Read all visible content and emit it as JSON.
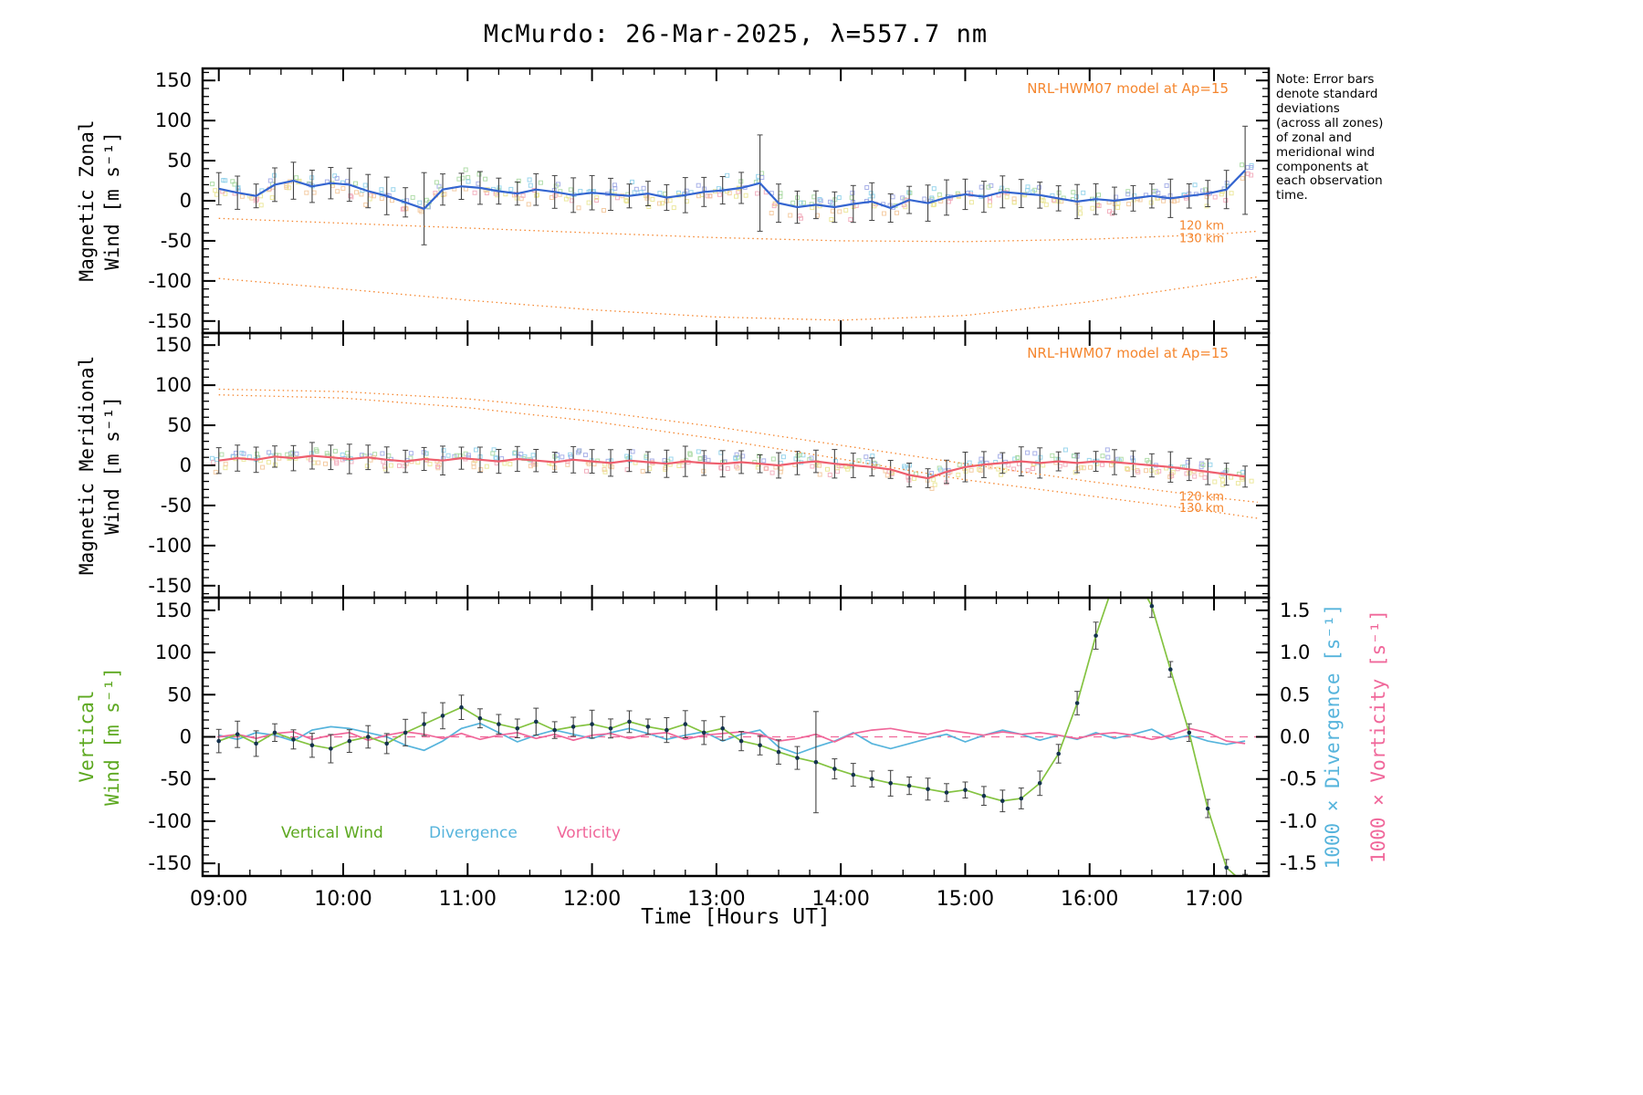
{
  "title": "McMurdo: 26-Mar-2025, λ=557.7 nm",
  "note": "Note: Error bars\ndenote standard\ndeviations\n(across all zones)\nof zonal and\nmeridional wind\ncomponents at\neach observation\ntime.",
  "colors": {
    "zonal_mean": "#3465d0",
    "meridional_mean": "#ee5f6e",
    "vertical_wind": "#84c341",
    "vertical_dots": "#14324e",
    "divergence": "#56b4dc",
    "vorticity": "#f0679a",
    "model": "#f5862e",
    "error_bar": "#444444"
  },
  "axes": {
    "xlabel": "Time [Hours UT]",
    "xlim": [
      8.87,
      17.44
    ],
    "xtick_vals": [
      9,
      10,
      11,
      12,
      13,
      14,
      15,
      16,
      17
    ],
    "xtick_labels": [
      "09:00",
      "10:00",
      "11:00",
      "12:00",
      "13:00",
      "14:00",
      "15:00",
      "16:00",
      "17:00"
    ],
    "ytick_vals": [
      150,
      100,
      50,
      0,
      -50,
      -100,
      -150
    ],
    "ytick_labels": [
      "150",
      "100",
      "50",
      "0",
      "-50",
      "-100",
      "-150"
    ],
    "x_hours": [
      9.0,
      9.15,
      9.3,
      9.45,
      9.6,
      9.75,
      9.9,
      10.05,
      10.2,
      10.35,
      10.5,
      10.65,
      10.8,
      10.95,
      11.1,
      11.25,
      11.4,
      11.55,
      11.7,
      11.85,
      12.0,
      12.15,
      12.3,
      12.45,
      12.6,
      12.75,
      12.9,
      13.05,
      13.2,
      13.35,
      13.5,
      13.65,
      13.8,
      13.95,
      14.1,
      14.25,
      14.4,
      14.55,
      14.7,
      14.85,
      15.0,
      15.15,
      15.3,
      15.45,
      15.6,
      15.75,
      15.9,
      16.05,
      16.2,
      16.35,
      16.5,
      16.65,
      16.8,
      16.95,
      17.1,
      17.25
    ]
  },
  "chart_data": [
    {
      "type": "line",
      "ylabel1": "Magnetic Zonal",
      "ylabel2": "Wind [m s⁻¹]",
      "ylim": [
        -150,
        150
      ],
      "ylim_draw": [
        -165,
        165
      ],
      "model_note": "NRL-HWM07 model at Ap=15",
      "series": [
        {
          "name": "zonal-mean-wind",
          "type": "mean",
          "color": "#3465d0",
          "width": 2.2,
          "err_base": 14,
          "err_jitter": 10,
          "err_override": {
            "11": 45,
            "29": 60,
            "55": 55
          },
          "scatter": {
            "n": 7,
            "spread": 14,
            "dx": 0.06,
            "colors_above": [
              "#9fa9e6",
              "#8fd0ea",
              "#a9d9a1"
            ],
            "colors_below": [
              "#f2a9b9",
              "#eae594",
              "#f3c79a"
            ]
          },
          "y": [
            15,
            10,
            6,
            20,
            25,
            18,
            22,
            20,
            12,
            6,
            -2,
            -10,
            14,
            18,
            16,
            12,
            9,
            14,
            11,
            7,
            10,
            8,
            6,
            9,
            4,
            7,
            11,
            13,
            16,
            22,
            -3,
            -8,
            -5,
            -8,
            -4,
            -1,
            -9,
            1,
            -3,
            4,
            8,
            5,
            11,
            9,
            7,
            3,
            -1,
            2,
            0,
            3,
            6,
            3,
            6,
            9,
            14,
            38
          ]
        },
        {
          "name": "model-120km",
          "type": "dotted",
          "color": "#f5862e",
          "label": "120 km",
          "label_pos": [
            16.72,
            -36
          ],
          "x": [
            9.0,
            10.0,
            11.0,
            12.0,
            13.0,
            14.0,
            15.0,
            16.0,
            17.0,
            17.35
          ],
          "y": [
            -22,
            -28,
            -34,
            -40,
            -46,
            -50,
            -51,
            -48,
            -42,
            -38
          ]
        },
        {
          "name": "model-130km",
          "type": "dotted",
          "color": "#f5862e",
          "label": "130 km",
          "label_pos": [
            16.72,
            -52
          ],
          "x": [
            9.0,
            10.0,
            11.0,
            12.0,
            13.0,
            14.0,
            15.0,
            16.0,
            17.0,
            17.35
          ],
          "y": [
            -97,
            -110,
            -124,
            -136,
            -145,
            -149,
            -143,
            -126,
            -103,
            -95
          ]
        }
      ]
    },
    {
      "type": "line",
      "ylabel1": "Magnetic Meridional",
      "ylabel2": "Wind [m s⁻¹]",
      "ylim": [
        -150,
        150
      ],
      "ylim_draw": [
        -165,
        165
      ],
      "model_note": "NRL-HWM07 model at Ap=15",
      "series": [
        {
          "name": "meridional-mean-wind",
          "type": "mean",
          "color": "#ee5f6e",
          "width": 2.2,
          "err_base": 11,
          "err_jitter": 8,
          "err_override": {},
          "scatter": {
            "n": 7,
            "spread": 11,
            "dx": 0.06,
            "colors_above": [
              "#9fa9e6",
              "#8fd0ea",
              "#a9d9a1"
            ],
            "colors_below": [
              "#f2a9b9",
              "#eae594",
              "#f3c79a"
            ]
          },
          "y": [
            6,
            9,
            7,
            11,
            9,
            12,
            10,
            8,
            10,
            7,
            5,
            8,
            6,
            9,
            7,
            5,
            8,
            6,
            4,
            7,
            5,
            3,
            6,
            4,
            2,
            5,
            3,
            2,
            4,
            2,
            0,
            3,
            5,
            2,
            0,
            -2,
            -5,
            -12,
            -16,
            -8,
            -2,
            1,
            3,
            5,
            3,
            5,
            3,
            5,
            4,
            2,
            0,
            -2,
            -5,
            -8,
            -11,
            -14
          ]
        },
        {
          "name": "model-120km",
          "type": "dotted",
          "color": "#f5862e",
          "label": "120 km",
          "label_pos": [
            16.72,
            -44
          ],
          "x": [
            9.0,
            10.0,
            11.0,
            12.0,
            13.0,
            14.0,
            15.0,
            16.0,
            17.0,
            17.35
          ],
          "y": [
            95,
            92,
            83,
            68,
            48,
            25,
            2,
            -20,
            -40,
            -46
          ]
        },
        {
          "name": "model-130km",
          "type": "dotted",
          "color": "#f5862e",
          "label": "130 km",
          "label_pos": [
            16.72,
            -58
          ],
          "x": [
            9.0,
            10.0,
            11.0,
            12.0,
            13.0,
            14.0,
            15.0,
            16.0,
            17.0,
            17.35
          ],
          "y": [
            88,
            84,
            72,
            55,
            33,
            8,
            -18,
            -38,
            -58,
            -66
          ]
        }
      ]
    },
    {
      "type": "line",
      "ylabel1": "Vertical",
      "ylabel2": "Wind [m s⁻¹]",
      "ylim": [
        -150,
        150
      ],
      "ylim_draw": [
        -165,
        165
      ],
      "right_ylim": [
        -1.5,
        1.5
      ],
      "right_scale": 100,
      "right_ytick_labels": [
        "1.5",
        "1.0",
        "0.5",
        "0.0",
        "-0.5",
        "-1.0",
        "-1.5"
      ],
      "right_label_div": "1000 × Divergence [s⁻¹]",
      "right_label_vort": "1000 × Vorticity [s⁻¹]",
      "zero_line": "#f0679a",
      "legend": {
        "vertical": "Vertical Wind",
        "divergence": "Divergence",
        "vorticity": "Vorticity"
      },
      "series": [
        {
          "name": "divergence",
          "type": "line",
          "axis": "right",
          "color": "#56b4dc",
          "width": 1.7,
          "y": [
            0.02,
            -0.03,
            0.05,
            0.02,
            -0.05,
            0.08,
            0.12,
            0.1,
            0.05,
            0.0,
            -0.1,
            -0.16,
            -0.05,
            0.1,
            0.16,
            0.05,
            -0.06,
            0.02,
            0.08,
            0.03,
            -0.02,
            0.05,
            0.1,
            0.04,
            -0.03,
            0.02,
            0.06,
            -0.05,
            0.03,
            0.08,
            -0.12,
            -0.2,
            -0.12,
            -0.05,
            0.05,
            -0.08,
            -0.14,
            -0.08,
            -0.02,
            0.03,
            -0.06,
            0.02,
            0.08,
            0.03,
            -0.04,
            0.02,
            -0.03,
            0.05,
            -0.02,
            0.03,
            0.09,
            -0.03,
            0.02,
            -0.05,
            -0.09,
            -0.05
          ]
        },
        {
          "name": "vorticity",
          "type": "line",
          "axis": "right",
          "color": "#f0679a",
          "width": 1.7,
          "y": [
            0.0,
            0.03,
            -0.02,
            0.04,
            0.06,
            -0.03,
            0.02,
            0.05,
            -0.04,
            0.02,
            0.06,
            0.03,
            -0.02,
            0.04,
            -0.03,
            0.02,
            0.05,
            -0.02,
            0.03,
            -0.04,
            0.02,
            0.04,
            -0.02,
            0.03,
            0.05,
            -0.03,
            0.02,
            0.04,
            0.06,
            0.03,
            -0.05,
            -0.02,
            0.03,
            -0.06,
            0.04,
            0.08,
            0.1,
            0.06,
            0.03,
            0.08,
            0.05,
            0.02,
            0.06,
            0.03,
            0.05,
            0.02,
            -0.02,
            0.03,
            0.05,
            0.02,
            -0.03,
            0.02,
            0.1,
            0.05,
            -0.05,
            -0.08
          ]
        },
        {
          "name": "vertical-wind",
          "type": "meandots",
          "color": "#84c341",
          "dot_color": "#14324e",
          "width": 1.7,
          "err_base": 9,
          "err_jitter": 8,
          "err_override": {
            "32": 60
          },
          "y": [
            -5,
            3,
            -8,
            5,
            -3,
            -10,
            -14,
            -5,
            0,
            -8,
            5,
            15,
            25,
            35,
            22,
            15,
            10,
            18,
            8,
            12,
            15,
            10,
            18,
            12,
            8,
            15,
            5,
            10,
            -5,
            -10,
            -18,
            -25,
            -30,
            -38,
            -45,
            -50,
            -55,
            -58,
            -62,
            -66,
            -63,
            -70,
            -76,
            -73,
            -55,
            -20,
            40,
            120,
            185,
            195,
            155,
            80,
            5,
            -85,
            -155,
            -175
          ]
        }
      ]
    }
  ]
}
